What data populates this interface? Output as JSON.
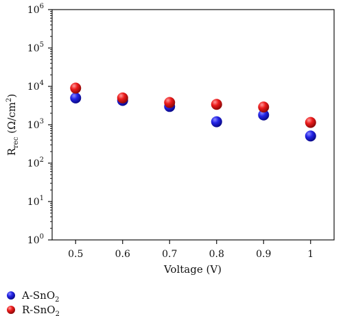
{
  "chart_data": {
    "type": "scatter",
    "xlabel": "Voltage (V)",
    "ylabel": "Rrec (Ω/cm2)",
    "y_scale": "log",
    "ylim": [
      1,
      1000000
    ],
    "xlim": [
      0.45,
      1.05
    ],
    "grid": false,
    "legend_position": "bottom-left",
    "x_ticks": [
      "0.5",
      "0.6",
      "0.7",
      "0.8",
      "0.9",
      "1"
    ],
    "y_ticks": [
      {
        "value": 1,
        "base": "10",
        "exp": "0"
      },
      {
        "value": 10,
        "base": "10",
        "exp": "1"
      },
      {
        "value": 100,
        "base": "10",
        "exp": "2"
      },
      {
        "value": 1000,
        "base": "10",
        "exp": "3"
      },
      {
        "value": 10000,
        "base": "10",
        "exp": "4"
      },
      {
        "value": 100000,
        "base": "10",
        "exp": "5"
      },
      {
        "value": 1000000,
        "base": "10",
        "exp": "6"
      }
    ],
    "series": [
      {
        "name": "A-SnO2",
        "color": "#1a1adb",
        "x": [
          0.5,
          0.6,
          0.7,
          0.8,
          0.9,
          1.0
        ],
        "y": [
          5000,
          4300,
          3000,
          1200,
          1800,
          510
        ]
      },
      {
        "name": "R-SnO2",
        "color": "#e01414",
        "x": [
          0.5,
          0.6,
          0.7,
          0.8,
          0.9,
          1.0
        ],
        "y": [
          9000,
          5000,
          3800,
          3400,
          2900,
          1150
        ]
      }
    ]
  }
}
